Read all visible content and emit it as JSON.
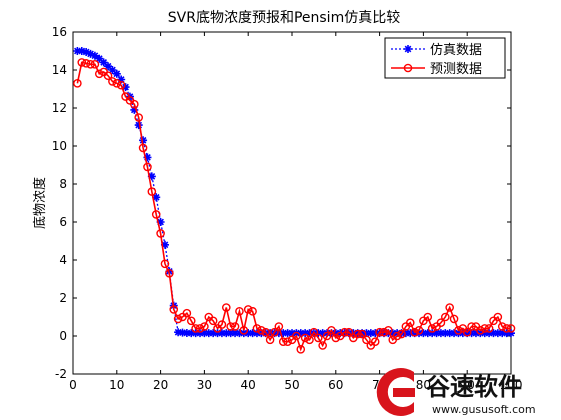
{
  "chart_data": {
    "type": "line",
    "title": "SVR底物浓度预报和Pensim仿真比较",
    "xlabel": "",
    "ylabel": "底物浓度",
    "xlim": [
      0,
      100
    ],
    "ylim": [
      -2,
      16
    ],
    "x_ticks": [
      0,
      10,
      20,
      30,
      40,
      50,
      60,
      70,
      80,
      90,
      100
    ],
    "y_ticks": [
      -2,
      0,
      2,
      4,
      6,
      8,
      10,
      12,
      14,
      16
    ],
    "grid": false,
    "legend_position": "top-right",
    "series": [
      {
        "name": "仿真数据",
        "color": "#0000ff",
        "line": "dotted",
        "marker": "star",
        "x": [
          1,
          2,
          3,
          4,
          5,
          6,
          7,
          8,
          9,
          10,
          11,
          12,
          13,
          14,
          15,
          16,
          17,
          18,
          19,
          20,
          21,
          22,
          23,
          24,
          25,
          26,
          27,
          28,
          29,
          30,
          31,
          32,
          33,
          34,
          35,
          36,
          37,
          38,
          39,
          40,
          41,
          42,
          43,
          44,
          45,
          46,
          47,
          48,
          49,
          50,
          51,
          52,
          53,
          54,
          55,
          56,
          57,
          58,
          59,
          60,
          61,
          62,
          63,
          64,
          65,
          66,
          67,
          68,
          69,
          70,
          71,
          72,
          73,
          74,
          75,
          76,
          77,
          78,
          79,
          80,
          81,
          82,
          83,
          84,
          85,
          86,
          87,
          88,
          89,
          90,
          91,
          92,
          93,
          94,
          95,
          96,
          97,
          98,
          99,
          100
        ],
        "values": [
          15.0,
          15.0,
          14.95,
          14.85,
          14.75,
          14.6,
          14.4,
          14.2,
          14.0,
          13.8,
          13.5,
          13.1,
          12.6,
          11.9,
          11.1,
          10.3,
          9.4,
          8.4,
          7.3,
          6.0,
          4.8,
          3.4,
          1.6,
          0.2,
          0.18,
          0.16,
          0.15,
          0.15,
          0.15,
          0.15,
          0.15,
          0.15,
          0.15,
          0.15,
          0.15,
          0.15,
          0.15,
          0.15,
          0.15,
          0.15,
          0.15,
          0.15,
          0.15,
          0.15,
          0.15,
          0.15,
          0.15,
          0.15,
          0.15,
          0.15,
          0.15,
          0.15,
          0.15,
          0.15,
          0.15,
          0.15,
          0.15,
          0.15,
          0.15,
          0.15,
          0.15,
          0.15,
          0.15,
          0.15,
          0.15,
          0.15,
          0.15,
          0.15,
          0.15,
          0.15,
          0.15,
          0.15,
          0.15,
          0.15,
          0.15,
          0.15,
          0.15,
          0.15,
          0.15,
          0.15,
          0.15,
          0.15,
          0.15,
          0.15,
          0.15,
          0.15,
          0.15,
          0.15,
          0.15,
          0.15,
          0.15,
          0.15,
          0.15,
          0.15,
          0.15,
          0.15,
          0.15,
          0.15,
          0.15,
          0.15
        ]
      },
      {
        "name": "预测数据",
        "color": "#ff0000",
        "line": "solid",
        "marker": "circle",
        "x": [
          1,
          2,
          3,
          4,
          5,
          6,
          7,
          8,
          9,
          10,
          11,
          12,
          13,
          14,
          15,
          16,
          17,
          18,
          19,
          20,
          21,
          22,
          23,
          24,
          25,
          26,
          27,
          28,
          29,
          30,
          31,
          32,
          33,
          34,
          35,
          36,
          37,
          38,
          39,
          40,
          41,
          42,
          43,
          44,
          45,
          46,
          47,
          48,
          49,
          50,
          51,
          52,
          53,
          54,
          55,
          56,
          57,
          58,
          59,
          60,
          61,
          62,
          63,
          64,
          65,
          66,
          67,
          68,
          69,
          70,
          71,
          72,
          73,
          74,
          75,
          76,
          77,
          78,
          79,
          80,
          81,
          82,
          83,
          84,
          85,
          86,
          87,
          88,
          89,
          90,
          91,
          92,
          93,
          94,
          95,
          96,
          97,
          98,
          99,
          100
        ],
        "values": [
          13.3,
          14.4,
          14.35,
          14.3,
          14.3,
          13.8,
          13.9,
          13.7,
          13.4,
          13.3,
          13.2,
          12.6,
          12.4,
          12.2,
          11.5,
          9.9,
          8.9,
          7.6,
          6.4,
          5.4,
          3.8,
          3.3,
          1.4,
          0.9,
          1.0,
          1.2,
          0.8,
          0.4,
          0.4,
          0.5,
          1.0,
          0.8,
          0.4,
          0.6,
          1.5,
          0.5,
          0.5,
          1.3,
          0.3,
          1.4,
          1.3,
          0.4,
          0.3,
          0.2,
          -0.2,
          0.2,
          0.5,
          -0.3,
          -0.3,
          -0.2,
          0.0,
          -0.7,
          -0.1,
          -0.2,
          0.2,
          -0.1,
          -0.5,
          0.0,
          0.3,
          -0.1,
          0.0,
          0.2,
          0.2,
          -0.1,
          0.1,
          0.1,
          -0.2,
          -0.5,
          -0.3,
          0.2,
          0.2,
          0.3,
          -0.2,
          0.0,
          0.1,
          0.5,
          0.7,
          0.2,
          0.3,
          0.8,
          1.0,
          0.4,
          0.5,
          0.7,
          1.0,
          1.5,
          0.9,
          0.3,
          0.4,
          0.2,
          0.5,
          0.5,
          0.3,
          0.4,
          0.4,
          0.8,
          1.0,
          0.5,
          0.4,
          0.4
        ]
      }
    ]
  },
  "watermark": {
    "brand": "谷速软件",
    "url": "www.gususoft.com"
  }
}
